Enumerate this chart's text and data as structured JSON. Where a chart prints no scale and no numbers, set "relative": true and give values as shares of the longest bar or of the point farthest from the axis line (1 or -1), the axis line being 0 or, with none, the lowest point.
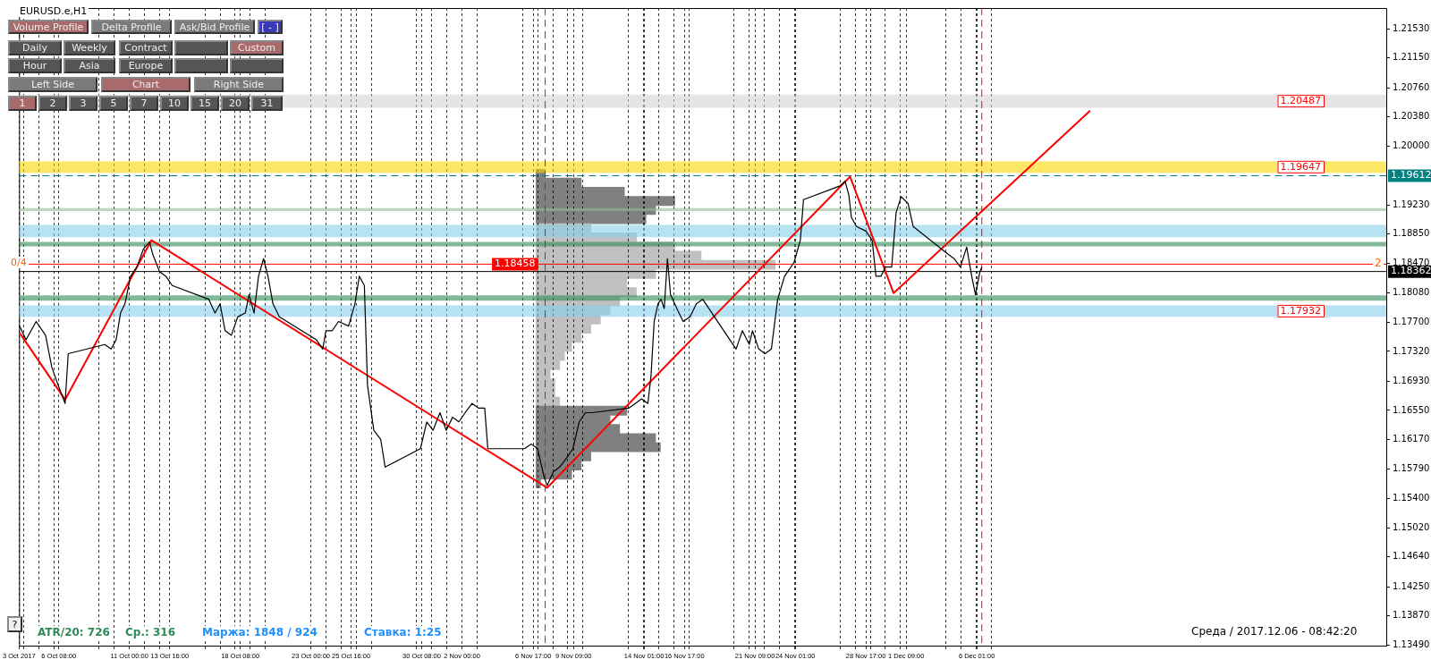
{
  "chart_data": [
    {
      "type": "line",
      "title": "EURUSD.e,H1",
      "xlim": [
        "2017-10-03T17:00",
        "2018-01-02T03:00"
      ],
      "ylim": [
        1.1348,
        1.218
      ],
      "xticks": [
        {
          "value": "2017-10-03T17:00",
          "label": "3 Oct 2017"
        },
        {
          "value": "2017-10-06T08:00",
          "label": "6 Oct 08:00"
        },
        {
          "value": "2017-10-11T00:00",
          "label": "11 Oct 00:00"
        },
        {
          "value": "2017-10-13T16:00",
          "label": "13 Oct 16:00"
        },
        {
          "value": "2017-10-18T08:00",
          "label": "18 Oct 08:00"
        },
        {
          "value": "2017-10-23T00:00",
          "label": "23 Oct 00:00"
        },
        {
          "value": "2017-10-25T16:00",
          "label": "25 Oct 16:00"
        },
        {
          "value": "2017-10-30T08:00",
          "label": "30 Oct 08:00"
        },
        {
          "value": "2017-11-02T00:00",
          "label": "2 Nov 00:00"
        },
        {
          "value": "2017-11-06T17:00",
          "label": "6 Nov 17:00"
        },
        {
          "value": "2017-11-09T09:00",
          "label": "9 Nov 09:00"
        },
        {
          "value": "2017-11-14T01:00",
          "label": "14 Nov 01:00"
        },
        {
          "value": "2017-11-16T17:00",
          "label": "16 Nov 17:00"
        },
        {
          "value": "2017-11-21T09:00",
          "label": "21 Nov 09:00"
        },
        {
          "value": "2017-11-24T01:00",
          "label": "24 Nov 01:00"
        },
        {
          "value": "2017-11-28T17:00",
          "label": "28 Nov 17:00"
        },
        {
          "value": "2017-12-01T09:00",
          "label": "1 Dec 09:00"
        },
        {
          "value": "2017-12-06T01:00",
          "label": "6 Dec 01:00"
        },
        {
          "value": "2017-10-04T00:00",
          "label": null
        },
        {
          "value": "2017-10-05T00:00",
          "label": null
        },
        {
          "value": "2017-10-06T00:00",
          "label": null
        },
        {
          "value": "2017-10-09T00:00",
          "label": null
        },
        {
          "value": "2017-10-10T00:00",
          "label": null
        },
        {
          "value": "2017-10-12T00:00",
          "label": null
        },
        {
          "value": "2017-10-13T00:00",
          "label": null
        },
        {
          "value": "2017-10-16T00:00",
          "label": null
        },
        {
          "value": "2017-10-17T00:00",
          "label": null
        },
        {
          "value": "2017-10-18T00:00",
          "label": null
        },
        {
          "value": "2017-10-19T00:00",
          "label": null
        },
        {
          "value": "2017-10-20T00:00",
          "label": null
        },
        {
          "value": "2017-10-24T00:00",
          "label": null
        },
        {
          "value": "2017-10-25T00:00",
          "label": null
        },
        {
          "value": "2017-10-26T00:00",
          "label": null
        },
        {
          "value": "2017-10-27T00:00",
          "label": null
        },
        {
          "value": "2017-10-30T00:00",
          "label": null
        },
        {
          "value": "2017-10-31T00:00",
          "label": null
        },
        {
          "value": "2017-11-01T00:00",
          "label": null
        },
        {
          "value": "2017-11-03T00:00",
          "label": null
        },
        {
          "value": "2017-11-06T00:00",
          "label": null
        },
        {
          "value": "2017-11-07T00:00",
          "label": null
        },
        {
          "value": "2017-11-08T00:00",
          "label": null
        },
        {
          "value": "2017-11-09T00:00",
          "label": null
        },
        {
          "value": "2017-11-10T00:00",
          "label": null
        },
        {
          "value": "2017-11-13T00:00",
          "label": null
        },
        {
          "value": "2017-11-14T00:00",
          "label": null
        },
        {
          "value": "2017-11-15T00:00",
          "label": null
        },
        {
          "value": "2017-11-16T00:00",
          "label": null
        },
        {
          "value": "2017-11-17T00:00",
          "label": null
        },
        {
          "value": "2017-11-20T00:00",
          "label": null
        },
        {
          "value": "2017-11-21T00:00",
          "label": null
        },
        {
          "value": "2017-11-22T00:00",
          "label": null
        },
        {
          "value": "2017-11-23T00:00",
          "label": null
        },
        {
          "value": "2017-11-24T00:00",
          "label": null
        },
        {
          "value": "2017-11-27T00:00",
          "label": null
        },
        {
          "value": "2017-11-28T00:00",
          "label": null
        },
        {
          "value": "2017-11-29T00:00",
          "label": null
        },
        {
          "value": "2017-11-30T00:00",
          "label": null
        },
        {
          "value": "2017-12-01T00:00",
          "label": null
        },
        {
          "value": "2017-12-04T00:00",
          "label": null
        },
        {
          "value": "2017-12-05T00:00",
          "label": null
        },
        {
          "value": "2017-12-06T00:00",
          "label": null
        },
        {
          "value": "2017-12-07T00:00",
          "label": null
        }
      ],
      "yticks": [
        {
          "value": 1.1349,
          "label": "1.13490"
        },
        {
          "value": 1.1387,
          "label": "1.13870"
        },
        {
          "value": 1.1425,
          "label": "1.14250"
        },
        {
          "value": 1.1464,
          "label": "1.14640"
        },
        {
          "value": 1.1502,
          "label": "1.15020"
        },
        {
          "value": 1.154,
          "label": "1.15400"
        },
        {
          "value": 1.1579,
          "label": "1.15790"
        },
        {
          "value": 1.1617,
          "label": "1.16170"
        },
        {
          "value": 1.1655,
          "label": "1.16550"
        },
        {
          "value": 1.1693,
          "label": "1.16930"
        },
        {
          "value": 1.1732,
          "label": "1.17320"
        },
        {
          "value": 1.177,
          "label": "1.17700"
        },
        {
          "value": 1.1808,
          "label": "1.18080"
        },
        {
          "value": 1.1847,
          "label": "1.18470"
        },
        {
          "value": 1.1885,
          "label": "1.18850"
        },
        {
          "value": 1.1923,
          "label": "1.19230"
        },
        {
          "value": 1.2,
          "label": "1.20000"
        },
        {
          "value": 1.2038,
          "label": "1.20380"
        },
        {
          "value": 1.2076,
          "label": "1.20760"
        },
        {
          "value": 1.2115,
          "label": "1.21150"
        },
        {
          "value": 1.2153,
          "label": "1.21530"
        }
      ],
      "grid": "x",
      "legend": false,
      "marker": "none",
      "series": [
        {
          "type": "line",
          "color": "#000000",
          "line_style": "solid",
          "x": [
            "2017-10-03T18:00",
            "2017-10-04T04:00",
            "2017-10-04T20:00",
            "2017-10-05T11:00",
            "2017-10-05T21:00",
            "2017-10-06T07:00",
            "2017-10-06T18:00",
            "2017-10-06T23:00",
            "2017-10-09T09:00",
            "2017-10-09T19:00",
            "2017-10-10T03:00",
            "2017-10-10T10:00",
            "2017-10-10T17:00",
            "2017-10-11T02:00",
            "2017-10-11T12:00",
            "2017-10-11T22:00",
            "2017-10-12T08:00",
            "2017-10-12T13:00",
            "2017-10-13T00:00",
            "2017-10-13T10:00",
            "2017-10-13T20:00",
            "2017-10-16T06:00",
            "2017-10-16T16:00",
            "2017-10-17T00:00",
            "2017-10-17T08:00",
            "2017-10-17T18:00",
            "2017-10-18T04:00",
            "2017-10-18T16:00",
            "2017-10-18T22:00",
            "2017-10-19T06:00",
            "2017-10-19T13:00",
            "2017-10-19T21:00",
            "2017-10-20T04:00",
            "2017-10-20T12:00",
            "2017-10-20T22:00",
            "2017-10-23T09:00",
            "2017-10-23T19:00",
            "2017-10-24T00:00",
            "2017-10-24T10:00",
            "2017-10-24T20:00",
            "2017-10-25T12:00",
            "2017-10-25T22:00",
            "2017-10-26T05:00",
            "2017-10-26T13:00",
            "2017-10-26T18:00",
            "2017-10-27T04:00",
            "2017-10-27T15:00",
            "2017-10-27T22:00",
            "2017-10-30T06:00",
            "2017-10-30T16:00",
            "2017-10-31T02:00",
            "2017-10-31T13:00",
            "2017-10-31T23:00",
            "2017-11-01T09:00",
            "2017-11-01T19:00",
            "2017-11-02T05:00",
            "2017-11-02T16:00",
            "2017-11-03T02:00",
            "2017-11-03T12:00",
            "2017-11-03T17:00",
            "2017-11-06T03:00",
            "2017-11-06T14:00",
            "2017-11-07T00:00",
            "2017-11-07T10:00",
            "2017-11-07T15:00",
            "2017-11-08T01:00",
            "2017-11-08T11:00",
            "2017-11-08T22:00",
            "2017-11-09T08:00",
            "2017-11-09T18:00",
            "2017-11-10T04:00",
            "2017-11-10T14:00",
            "2017-11-13T01:00",
            "2017-11-13T11:00",
            "2017-11-13T21:00",
            "2017-11-14T07:00",
            "2017-11-14T12:00",
            "2017-11-14T17:00",
            "2017-11-14T23:00",
            "2017-11-15T04:00",
            "2017-11-15T09:00",
            "2017-11-15T14:00",
            "2017-11-15T19:00",
            "2017-11-16T05:00",
            "2017-11-16T15:00",
            "2017-11-17T02:00",
            "2017-11-17T12:00",
            "2017-11-17T22:00",
            "2017-11-20T03:00",
            "2017-11-20T13:00",
            "2017-11-21T00:00",
            "2017-11-21T05:00",
            "2017-11-21T15:00",
            "2017-11-22T01:00",
            "2017-11-22T11:00",
            "2017-11-22T21:00",
            "2017-11-23T08:00",
            "2017-11-23T23:00",
            "2017-11-24T09:00",
            "2017-11-24T14:00",
            "2017-11-27T00:00",
            "2017-11-27T08:00",
            "2017-11-27T14:00",
            "2017-11-27T18:00",
            "2017-11-28T02:00",
            "2017-11-28T17:00",
            "2017-11-29T03:00",
            "2017-11-29T09:00",
            "2017-11-29T17:00",
            "2017-11-30T00:00",
            "2017-11-30T10:00",
            "2017-11-30T17:00",
            "2017-12-01T01:00",
            "2017-12-01T12:00",
            "2017-12-01T20:00",
            "2017-12-04T03:00",
            "2017-12-04T13:00",
            "2017-12-04T23:00",
            "2017-12-05T09:00",
            "2017-12-05T17:00",
            "2017-12-05T23:00",
            "2017-12-06T06:00",
            "2017-12-06T09:00"
          ],
          "values": [
            1.1765,
            1.1747,
            1.1771,
            1.1753,
            1.1711,
            1.1688,
            1.1664,
            1.1729,
            1.1741,
            1.1735,
            1.1747,
            1.1782,
            1.1794,
            1.183,
            1.1842,
            1.1865,
            1.1875,
            1.1859,
            1.1836,
            1.183,
            1.1818,
            1.18,
            1.1782,
            1.1794,
            1.1759,
            1.1753,
            1.1777,
            1.1782,
            1.1806,
            1.1782,
            1.183,
            1.1853,
            1.183,
            1.1794,
            1.1777,
            1.1747,
            1.1735,
            1.1759,
            1.1759,
            1.1771,
            1.1765,
            1.1794,
            1.183,
            1.1818,
            1.1688,
            1.1629,
            1.1617,
            1.1581,
            1.1605,
            1.164,
            1.1629,
            1.1652,
            1.1629,
            1.1646,
            1.164,
            1.1652,
            1.1664,
            1.1658,
            1.1658,
            1.1605,
            1.1605,
            1.1611,
            1.1605,
            1.1569,
            1.1557,
            1.1575,
            1.1581,
            1.1593,
            1.1605,
            1.164,
            1.1652,
            1.1652,
            1.1658,
            1.1664,
            1.167,
            1.1664,
            1.17,
            1.1771,
            1.1794,
            1.18,
            1.1788,
            1.1853,
            1.1806,
            1.1788,
            1.1771,
            1.1777,
            1.1794,
            1.18,
            1.1735,
            1.1759,
            1.1741,
            1.1759,
            1.1735,
            1.1729,
            1.1735,
            1.18,
            1.183,
            1.1848,
            1.1877,
            1.193,
            1.1948,
            1.1954,
            1.1936,
            1.1907,
            1.1895,
            1.1889,
            1.1877,
            1.183,
            1.183,
            1.1842,
            1.1842,
            1.1913,
            1.1934,
            1.1925,
            1.1895,
            1.1859,
            1.1853,
            1.1842,
            1.1868,
            1.183,
            1.1806,
            1.1836,
            1.1842
          ]
        },
        {
          "type": "line",
          "color": "#ff0000",
          "line_style": "solid",
          "x": [
            "2017-10-03T18:00",
            "2017-10-06T18:00",
            "2017-10-12T11:00",
            "2017-11-07T15:00",
            "2017-11-27T16:00",
            "2017-11-30T13:00",
            "2017-12-13T13:00"
          ],
          "values": [
            1.1756,
            1.1669,
            1.1877,
            1.1554,
            1.196,
            1.1808,
            1.2046
          ]
        }
      ],
      "ref_lines": [
        {
          "axis": "y",
          "value": 1.19612,
          "label": "1.19612",
          "color": "#008080",
          "line_style": "dashed"
        },
        {
          "axis": "y",
          "value": 1.18362,
          "label": "1.18362",
          "color": "#000000",
          "line_style": "solid"
        },
        {
          "axis": "y",
          "value": 1.18458,
          "label": "1.18458",
          "color": "#ff0000",
          "line_style": "solid"
        },
        {
          "axis": "x",
          "value": "2017-11-07T12:00",
          "color": "#ff0000",
          "line_style": "dashed"
        },
        {
          "axis": "x",
          "value": "2017-12-06T09:00",
          "color": "#ff0000",
          "line_style": "dashed"
        }
      ],
      "bands": [
        {
          "axis": "y",
          "from": 1.205,
          "to": 1.2067,
          "label": "1.20487",
          "color": "#d3d3d3"
        },
        {
          "axis": "y",
          "from": 1.1965,
          "to": 1.198,
          "label": "1.19647",
          "color": "#ffd700"
        },
        {
          "axis": "y",
          "from": 1.1881,
          "to": 1.1897,
          "color": "#87ceeb"
        },
        {
          "axis": "y",
          "from": 1.1777,
          "to": 1.1792,
          "label": "1.17932",
          "color": "#87ceeb"
        },
        {
          "axis": "y",
          "from": 1.1869,
          "to": 1.1875,
          "color": "#2e8b57"
        },
        {
          "axis": "y",
          "from": 1.1798,
          "to": 1.1805,
          "color": "#2e8b57"
        },
        {
          "axis": "y",
          "from": 1.1915,
          "to": 1.1919,
          "color": "#8fbc8f"
        }
      ],
      "annotations": [
        "Volume Profile",
        "Delta Profile",
        "Ask/Bid Profile",
        "[ - ]",
        "Daily",
        "Weekly",
        "Contract",
        "Custom",
        "Hour",
        "Asia",
        "Europe",
        "Left Side",
        "Chart",
        "Right Side",
        "1",
        "2",
        "3",
        "5",
        "7",
        "10",
        "15",
        "20",
        "31",
        "?",
        "0/4",
        "2",
        "ATR/20: 726",
        "Ср.: 316",
        "Маржа: 1848 / 924",
        "Ставка: 1:25",
        "Среда  /  2017.12.06  -  08:42:20"
      ]
    },
    {
      "type": "bar",
      "orientation": "horizontal",
      "relative": true,
      "categories": [
        null,
        null,
        null,
        null,
        null,
        null,
        null,
        null,
        null,
        null,
        null,
        null,
        null,
        null,
        null,
        null,
        null,
        null,
        null,
        null,
        null,
        null,
        null,
        null,
        null,
        null,
        null,
        null,
        null,
        null,
        null,
        null,
        null,
        null,
        null
      ],
      "values": [
        0.04,
        0.19,
        0.37,
        0.58,
        0.5,
        0.46,
        0.23,
        0.42,
        0.58,
        0.69,
        1,
        0.5,
        0.38,
        0.42,
        0.35,
        0.31,
        0.27,
        0.23,
        0.19,
        0.15,
        0.12,
        0.1,
        0.06,
        0.08,
        0.08,
        0.1,
        0.38,
        0.31,
        0.35,
        0.5,
        0.52,
        0.23,
        0.19,
        0.15,
        0.02
      ],
      "colors": [
        "#808080",
        "#808080",
        "#808080",
        "#808080",
        "#808080",
        "#808080",
        "#c0c0c0",
        "#c0c0c0",
        "#c0c0c0",
        "#c0c0c0",
        "#c0c0c0",
        "#c0c0c0",
        "#c0c0c0",
        "#c0c0c0",
        "#c0c0c0",
        "#c0c0c0",
        "#c0c0c0",
        "#c0c0c0",
        "#c0c0c0",
        "#c0c0c0",
        "#c0c0c0",
        "#c0c0c0",
        "#c0c0c0",
        "#c0c0c0",
        "#c0c0c0",
        "#c0c0c0",
        "#808080",
        "#808080",
        "#808080",
        "#808080",
        "#808080",
        "#808080",
        "#808080",
        "#808080",
        "#808080"
      ],
      "legend": false,
      "grid": false
    }
  ]
}
